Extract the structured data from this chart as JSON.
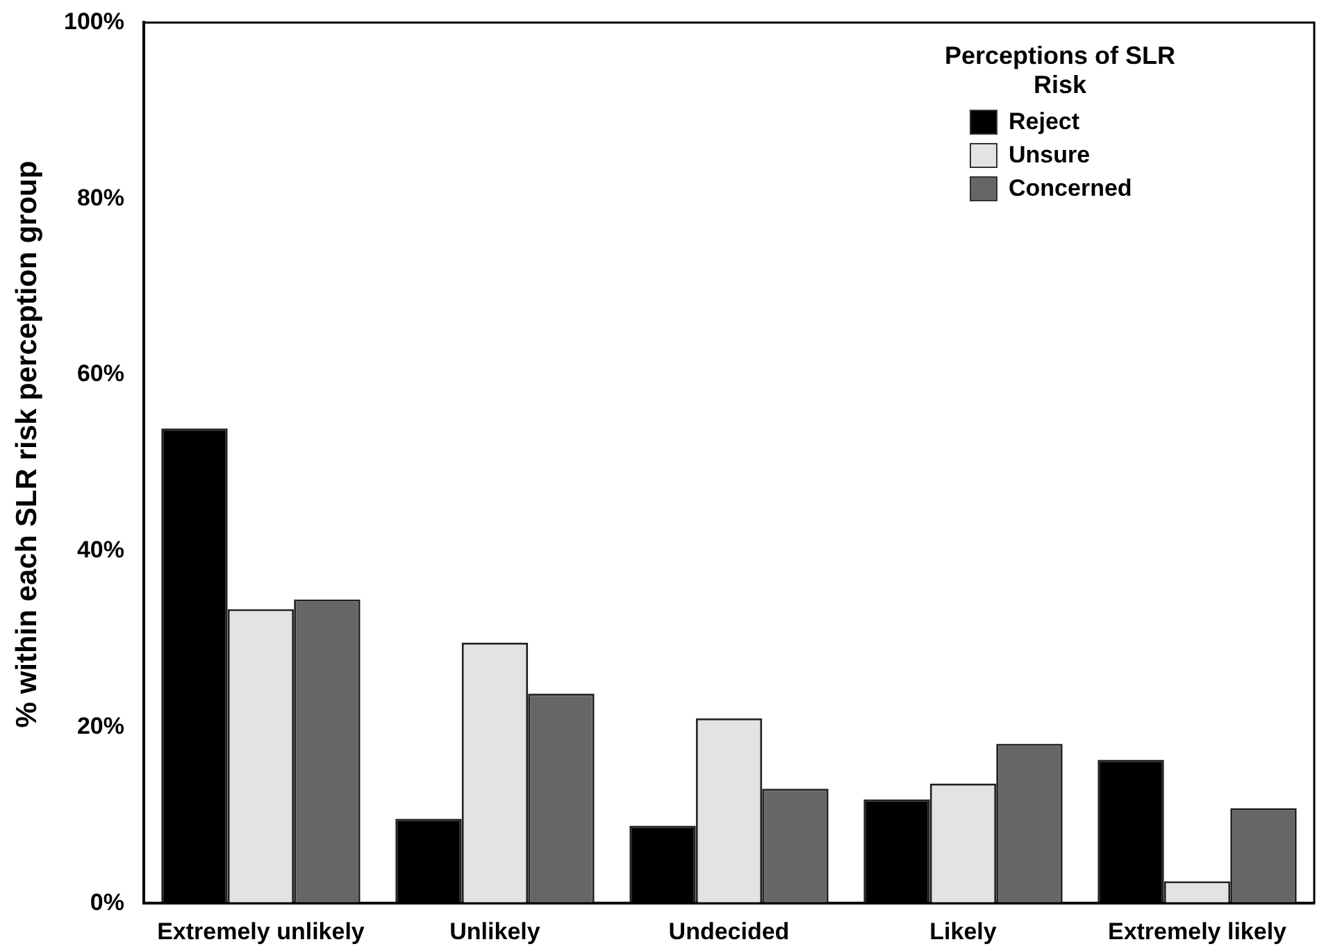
{
  "chart_data": {
    "type": "bar",
    "ylabel": "% within each SLR risk perception group",
    "legend_title": "Perceptions of SLR Risk",
    "legend": "top right",
    "categories": [
      "Extremely unlikely",
      "Unlikely",
      "Undecided",
      "Likely",
      "Extremely likely"
    ],
    "ylim": [
      0,
      100
    ],
    "yticks": [
      {
        "value": 0,
        "label": "0%"
      },
      {
        "value": 20,
        "label": "20%"
      },
      {
        "value": 40,
        "label": "40%"
      },
      {
        "value": 60,
        "label": "60%"
      },
      {
        "value": 80,
        "label": "80%"
      },
      {
        "value": 100,
        "label": "100%"
      }
    ],
    "grid": false,
    "series": [
      {
        "name": "Reject",
        "color": "#000000",
        "values": [
          53.9,
          9.6,
          8.8,
          11.8,
          16.3
        ]
      },
      {
        "name": "Unsure",
        "color": "#e3e3e3",
        "values": [
          33.4,
          29.6,
          21.0,
          13.6,
          2.5
        ]
      },
      {
        "name": "Concerned",
        "color": "#666666",
        "values": [
          34.5,
          23.8,
          13.0,
          18.1,
          10.8
        ]
      }
    ]
  }
}
